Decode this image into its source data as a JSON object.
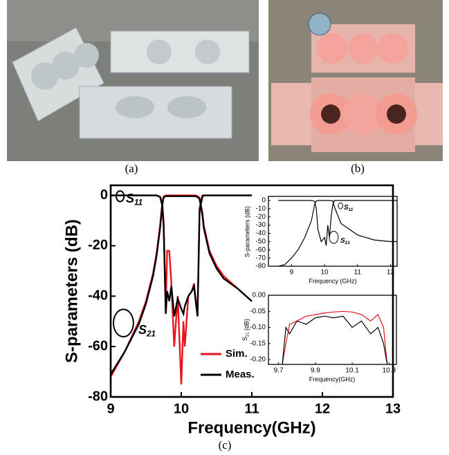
{
  "captions": {
    "a": "(a)",
    "b": "(b)",
    "c": "(c)"
  },
  "chart_data": [
    {
      "type": "line",
      "x_label": "Frequency(GHz)",
      "y_label": "S-parameters (dB)",
      "x": [
        9,
        9.2,
        9.4,
        9.5,
        9.6,
        9.65,
        9.7,
        9.73,
        9.75,
        9.78,
        9.8,
        9.83,
        9.86,
        9.9,
        9.95,
        10,
        10.03,
        10.05,
        10.1,
        10.15,
        10.18,
        10.2,
        10.23,
        10.26,
        10.3,
        10.32,
        10.4,
        10.5,
        10.6,
        10.8,
        11
      ],
      "series": [
        {
          "name": "Sim.",
          "color": "#e8141b",
          "values": [
            -72,
            -62,
            -50,
            -42,
            -31,
            -23,
            -12,
            -3,
            -0.5,
            0,
            0,
            0,
            0,
            0,
            0,
            0,
            0,
            0,
            0,
            0,
            0,
            0,
            -0.3,
            -1,
            -7,
            -12,
            -22,
            -28,
            -32,
            -37,
            -42
          ],
          "s11": [
            0,
            0,
            0,
            0,
            0,
            0,
            -0.5,
            -3,
            -10,
            -45,
            -22,
            -22,
            -35,
            -60,
            -40,
            -75,
            -50,
            -60,
            -40,
            -38,
            -35,
            -40,
            -48,
            -5,
            0,
            0,
            0,
            0,
            0,
            0,
            0
          ]
        },
        {
          "name": "Meas.",
          "color": "#000000",
          "values": [
            -71,
            -62,
            -51,
            -43,
            -32,
            -24,
            -13,
            -4,
            -0.8,
            -0.3,
            -0.3,
            -0.3,
            -0.3,
            -0.3,
            -0.3,
            -0.3,
            -0.3,
            -0.3,
            -0.3,
            -0.3,
            -0.3,
            -0.3,
            -0.6,
            -1.5,
            -8,
            -13,
            -23,
            -29,
            -33,
            -37,
            -42
          ],
          "s11": [
            0,
            0,
            0,
            0,
            0,
            0,
            -0.6,
            -4,
            -12,
            -47,
            -38,
            -42,
            -36,
            -48,
            -41,
            -45,
            -47,
            -44,
            -40,
            -38,
            -36,
            -41,
            -48,
            -6,
            -0.5,
            0,
            0,
            0,
            0,
            0,
            0
          ]
        }
      ],
      "xlim": [
        9,
        13
      ],
      "xticks": [
        9,
        10,
        11,
        12,
        13
      ],
      "ylim": [
        -80,
        4
      ],
      "yticks": [
        0,
        -20,
        -40,
        -60,
        -80
      ],
      "annotations": [
        {
          "text": "S",
          "sub": "11"
        },
        {
          "text": "S",
          "sub": "21"
        }
      ]
    },
    {
      "type": "line",
      "x_label": "Frequency (GHz)",
      "y_label": "S-parameters (dB)",
      "x": [
        8.6,
        8.8,
        9,
        9.2,
        9.4,
        9.6,
        9.7,
        9.75,
        9.8,
        9.9,
        10,
        10.05,
        10.1,
        10.15,
        10.2,
        10.25,
        10.3,
        10.5,
        11,
        11.5,
        12,
        12.2
      ],
      "series": [
        {
          "color": "#000000",
          "values": [
            -80,
            -78,
            -70,
            -60,
            -45,
            -25,
            -5,
            -0.5,
            0,
            0,
            0,
            0,
            0,
            0,
            0,
            -0.5,
            -8,
            -28,
            -42,
            -48,
            -50,
            -50
          ],
          "s11": [
            0,
            0,
            0,
            0,
            0,
            0,
            -1,
            -10,
            -35,
            -50,
            -45,
            -55,
            -30,
            -45,
            -20,
            -5,
            0,
            0,
            0,
            0,
            0,
            0
          ]
        }
      ],
      "xlim": [
        8.3,
        12.2
      ],
      "xticks": [
        9,
        10,
        11,
        12
      ],
      "ylim": [
        -80,
        5
      ],
      "yticks": [
        0,
        -10,
        -20,
        -30,
        -40,
        -50,
        -60,
        -70,
        -80
      ],
      "annotations": [
        {
          "text": "S",
          "sub": "11"
        },
        {
          "text": "S",
          "sub": "21"
        }
      ]
    },
    {
      "type": "line",
      "x_label": "Frequency(GHz)",
      "y_label": {
        "text": "S",
        "sub": "21",
        "rest": " (dB)"
      },
      "x": [
        9.72,
        9.74,
        9.76,
        9.8,
        9.85,
        9.9,
        9.95,
        10,
        10.05,
        10.1,
        10.15,
        10.2,
        10.24,
        10.27,
        10.29
      ],
      "series": [
        {
          "color": "#e8141b",
          "values": [
            -0.215,
            -0.15,
            -0.09,
            -0.08,
            -0.065,
            -0.06,
            -0.055,
            -0.052,
            -0.05,
            -0.052,
            -0.06,
            -0.08,
            -0.06,
            -0.1,
            -0.215
          ]
        },
        {
          "color": "#000000",
          "values": [
            -0.215,
            -0.1,
            -0.12,
            -0.08,
            -0.09,
            -0.07,
            -0.065,
            -0.07,
            -0.065,
            -0.1,
            -0.08,
            -0.12,
            -0.1,
            -0.15,
            -0.215
          ]
        }
      ],
      "xlim": [
        9.645,
        10.34
      ],
      "xticks": [
        9.7,
        9.9,
        10.1,
        10.3
      ],
      "ylim": [
        -0.215,
        0
      ],
      "yticks": [
        {
          "value": 0,
          "label": "0.00"
        },
        -0.05,
        {
          "value": -0.1,
          "label": "-0.10"
        },
        -0.15,
        {
          "value": -0.2,
          "label": "-0.20"
        }
      ]
    }
  ]
}
